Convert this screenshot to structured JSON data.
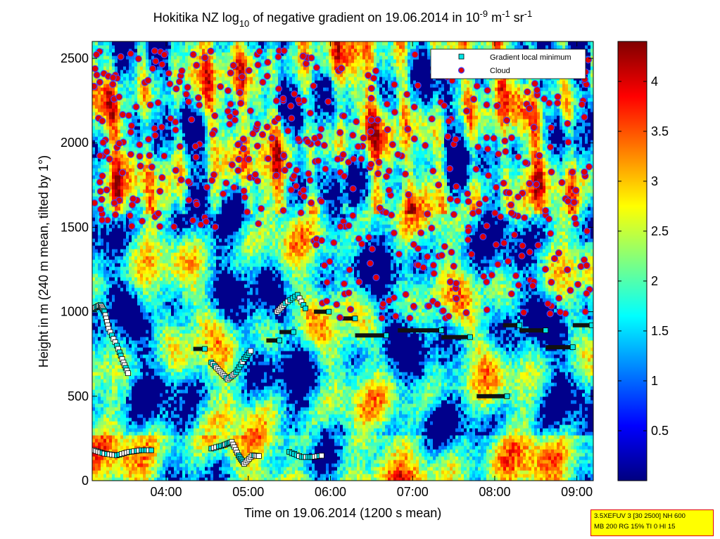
{
  "chart_data": {
    "type": "heatmap",
    "title": {
      "pre": "Hokitika NZ log",
      "sub10": "10",
      "mid": " of negative gradient on 19.06.2014 in 10",
      "exp9": "-9",
      "m": " m",
      "exp1": "-1",
      "sr": " sr",
      "exp1b": "-1"
    },
    "xlabel": "Time on 19.06.2014 (1200 s mean)",
    "ylabel": "Height in m (240 m mean, tilted by 1°)",
    "x_range_hours": [
      3.1,
      9.2
    ],
    "x_ticks": [
      {
        "h": 4,
        "label": "04:00"
      },
      {
        "h": 5,
        "label": "05:00"
      },
      {
        "h": 6,
        "label": "06:00"
      },
      {
        "h": 7,
        "label": "07:00"
      },
      {
        "h": 8,
        "label": "08:00"
      },
      {
        "h": 9,
        "label": "09:00"
      }
    ],
    "ylim": [
      0,
      2600
    ],
    "y_ticks": [
      {
        "v": 0,
        "label": "0"
      },
      {
        "v": 500,
        "label": "500"
      },
      {
        "v": 1000,
        "label": "1000"
      },
      {
        "v": 1500,
        "label": "1500"
      },
      {
        "v": 2000,
        "label": "2000"
      },
      {
        "v": 2500,
        "label": "2500"
      }
    ],
    "colorbar": {
      "range": [
        0,
        4.4
      ],
      "ticks": [
        {
          "v": 0.5,
          "label": "0.5"
        },
        {
          "v": 1,
          "label": "1"
        },
        {
          "v": 1.5,
          "label": "1.5"
        },
        {
          "v": 2,
          "label": "2"
        },
        {
          "v": 2.5,
          "label": "2.5"
        },
        {
          "v": 3,
          "label": "3"
        },
        {
          "v": 3.5,
          "label": "3.5"
        },
        {
          "v": 4,
          "label": "4"
        }
      ]
    },
    "legend": {
      "placement": "top-right",
      "entries": [
        {
          "label": "Gradient local minimum",
          "marker": "square",
          "color": "#00e5e5"
        },
        {
          "label": "Cloud",
          "marker": "circle",
          "color": "#e00000"
        }
      ]
    },
    "gradient_minimum_bars": [
      {
        "h0": 4.33,
        "h1": 4.47,
        "height": 780
      },
      {
        "h0": 5.22,
        "h1": 5.38,
        "height": 830
      },
      {
        "h0": 5.38,
        "h1": 5.55,
        "height": 880
      },
      {
        "h0": 5.8,
        "h1": 5.98,
        "height": 1000
      },
      {
        "h0": 6.1,
        "h1": 6.3,
        "height": 960
      },
      {
        "h0": 6.3,
        "h1": 6.68,
        "height": 860
      },
      {
        "h0": 6.82,
        "h1": 7.35,
        "height": 890
      },
      {
        "h0": 7.35,
        "h1": 7.7,
        "height": 850
      },
      {
        "h0": 7.78,
        "h1": 8.15,
        "height": 500
      },
      {
        "h0": 8.1,
        "h1": 8.3,
        "height": 920
      },
      {
        "h0": 8.3,
        "h1": 8.62,
        "height": 890
      },
      {
        "h0": 8.62,
        "h1": 8.95,
        "height": 790
      },
      {
        "h0": 8.95,
        "h1": 9.18,
        "height": 920
      }
    ],
    "gradient_minimum_tracks": [
      {
        "points": [
          [
            3.12,
            180
          ],
          [
            3.25,
            160
          ],
          [
            3.4,
            150
          ],
          [
            3.55,
            170
          ],
          [
            3.7,
            180
          ],
          [
            3.85,
            180
          ]
        ]
      },
      {
        "points": [
          [
            4.55,
            190
          ],
          [
            4.7,
            210
          ],
          [
            4.8,
            230
          ],
          [
            4.88,
            150
          ],
          [
            4.95,
            100
          ],
          [
            5.05,
            150
          ],
          [
            5.15,
            145
          ]
        ]
      },
      {
        "points": [
          [
            5.5,
            170
          ],
          [
            5.65,
            140
          ],
          [
            5.78,
            140
          ],
          [
            5.92,
            150
          ]
        ]
      },
      {
        "points": [
          [
            3.12,
            1020
          ],
          [
            3.2,
            1040
          ],
          [
            3.25,
            1000
          ],
          [
            3.3,
            900
          ],
          [
            3.4,
            800
          ],
          [
            3.48,
            700
          ],
          [
            3.55,
            620
          ]
        ]
      },
      {
        "points": [
          [
            4.55,
            700
          ],
          [
            4.65,
            650
          ],
          [
            4.75,
            600
          ],
          [
            4.85,
            640
          ],
          [
            4.95,
            720
          ],
          [
            5.05,
            780
          ]
        ]
      },
      {
        "points": [
          [
            5.35,
            1000
          ],
          [
            5.45,
            1050
          ],
          [
            5.6,
            1100
          ],
          [
            5.72,
            1000
          ]
        ]
      }
    ],
    "info_box": {
      "line1": "3.5XEFUV 3 [30 2500] NH 600",
      "line2": "MB 200 RG 15% TI 0 HI 15"
    }
  }
}
